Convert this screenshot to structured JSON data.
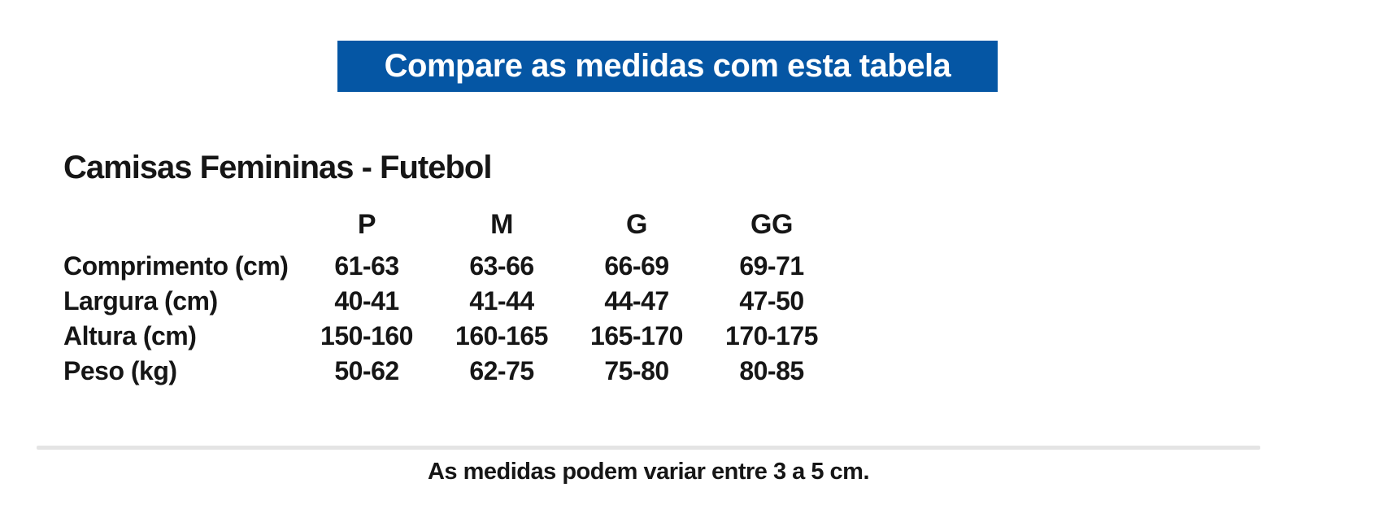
{
  "banner": {
    "label": "Compare as medidas com esta tabela",
    "bg_color": "#0556A4",
    "text_color": "#FFFFFF"
  },
  "section": {
    "title": "Camisas Femininas - Futebol"
  },
  "size_table": {
    "columns": [
      "P",
      "M",
      "G",
      "GG"
    ],
    "rows": [
      {
        "label": "Comprimento (cm)",
        "values": [
          "61-63",
          "63-66",
          "66-69",
          "69-71"
        ]
      },
      {
        "label": "Largura (cm)",
        "values": [
          "40-41",
          "41-44",
          "44-47",
          "47-50"
        ]
      },
      {
        "label": "Altura (cm)",
        "values": [
          "150-160",
          "160-165",
          "165-170",
          "170-175"
        ]
      },
      {
        "label": "Peso (kg)",
        "values": [
          "50-62",
          "62-75",
          "75-80",
          "80-85"
        ]
      }
    ]
  },
  "divider": {
    "color": "#E4E4E4"
  },
  "footer": {
    "note": "As medidas podem variar entre 3 a 5 cm."
  }
}
